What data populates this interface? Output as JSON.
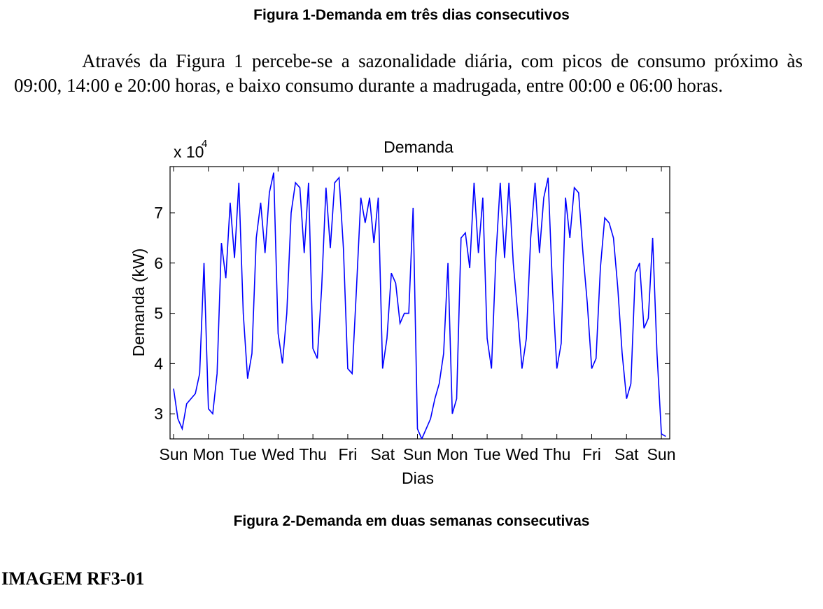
{
  "header": {
    "caption": "Figura 1-Demanda em três dias consecutivos"
  },
  "paragraph": "Através da  Figura 1 percebe-se a sazonalidade diária, com picos de consumo próximo às 09:00, 14:00 e 20:00 horas, e baixo consumo durante a madrugada, entre 00:00 e 06:00 horas.",
  "chart_data": {
    "type": "line",
    "title": "Demanda",
    "x_label": "Dias",
    "y_label": "Demanda (kW)",
    "y_multiplier": {
      "base": "x 10",
      "exponent": "4"
    },
    "color": "#0000ff",
    "xlim": [
      -0.1,
      14.24
    ],
    "ylim": [
      2.5,
      7.92
    ],
    "xticks": [
      {
        "value": 0,
        "label": "Sun"
      },
      {
        "value": 1,
        "label": "Mon"
      },
      {
        "value": 2,
        "label": "Tue"
      },
      {
        "value": 3,
        "label": "Wed"
      },
      {
        "value": 4,
        "label": "Thu"
      },
      {
        "value": 5,
        "label": "Fri"
      },
      {
        "value": 6,
        "label": "Sat"
      },
      {
        "value": 7,
        "label": "Sun"
      },
      {
        "value": 8,
        "label": "Mon"
      },
      {
        "value": 9,
        "label": "Tue"
      },
      {
        "value": 10,
        "label": "Wed"
      },
      {
        "value": 11,
        "label": "Thu"
      },
      {
        "value": 12,
        "label": "Fri"
      },
      {
        "value": 13,
        "label": "Sat"
      },
      {
        "value": 14,
        "label": "Sun"
      }
    ],
    "yticks": [
      3,
      4,
      5,
      6,
      7
    ],
    "x": [
      0,
      0.125,
      0.25,
      0.375,
      0.5,
      0.625,
      0.75,
      0.875,
      1,
      1.125,
      1.25,
      1.375,
      1.5,
      1.625,
      1.75,
      1.875,
      2,
      2.125,
      2.25,
      2.375,
      2.5,
      2.625,
      2.75,
      2.875,
      3,
      3.125,
      3.25,
      3.375,
      3.5,
      3.625,
      3.75,
      3.875,
      4,
      4.125,
      4.25,
      4.375,
      4.5,
      4.625,
      4.75,
      4.875,
      5,
      5.125,
      5.25,
      5.375,
      5.5,
      5.625,
      5.75,
      5.875,
      6,
      6.125,
      6.25,
      6.375,
      6.5,
      6.625,
      6.75,
      6.875,
      7,
      7.125,
      7.25,
      7.375,
      7.5,
      7.625,
      7.75,
      7.875,
      8,
      8.125,
      8.25,
      8.375,
      8.5,
      8.625,
      8.75,
      8.875,
      9,
      9.125,
      9.25,
      9.375,
      9.5,
      9.625,
      9.75,
      9.875,
      10,
      10.125,
      10.25,
      10.375,
      10.5,
      10.625,
      10.75,
      10.875,
      11,
      11.125,
      11.25,
      11.375,
      11.5,
      11.625,
      11.75,
      11.875,
      12,
      12.125,
      12.25,
      12.375,
      12.5,
      12.625,
      12.75,
      12.875,
      13,
      13.125,
      13.25,
      13.375,
      13.5,
      13.625,
      13.75,
      13.875,
      14,
      14.125
    ],
    "values": [
      3.5,
      2.9,
      2.7,
      3.2,
      3.3,
      3.4,
      3.8,
      6.0,
      3.1,
      3.0,
      3.8,
      6.4,
      5.7,
      7.2,
      6.1,
      7.6,
      5.0,
      3.7,
      4.2,
      6.5,
      7.2,
      6.2,
      7.4,
      7.8,
      4.6,
      4.0,
      5.0,
      7.0,
      7.6,
      7.5,
      6.2,
      7.6,
      4.3,
      4.1,
      5.5,
      7.5,
      6.3,
      7.6,
      7.7,
      6.3,
      3.9,
      3.8,
      5.5,
      7.3,
      6.8,
      7.3,
      6.4,
      7.3,
      3.9,
      4.5,
      5.8,
      5.6,
      4.8,
      5.0,
      5.0,
      7.1,
      2.7,
      2.5,
      2.7,
      2.9,
      3.3,
      3.6,
      4.2,
      6.0,
      3.0,
      3.3,
      6.5,
      6.6,
      5.9,
      7.6,
      6.2,
      7.3,
      4.5,
      3.9,
      6.1,
      7.6,
      6.1,
      7.6,
      6.0,
      5.0,
      3.9,
      4.5,
      6.5,
      7.6,
      6.2,
      7.3,
      7.7,
      5.5,
      3.9,
      4.4,
      7.3,
      6.5,
      7.5,
      7.4,
      6.2,
      5.2,
      3.9,
      4.1,
      5.9,
      6.9,
      6.8,
      6.5,
      5.5,
      4.2,
      3.3,
      3.6,
      5.8,
      6.0,
      4.7,
      4.9,
      6.5,
      4.2,
      2.6,
      2.55
    ]
  },
  "caption_2": "Figura 2-Demanda em duas semanas consecutivas",
  "footer": "IMAGEM RF3-01"
}
